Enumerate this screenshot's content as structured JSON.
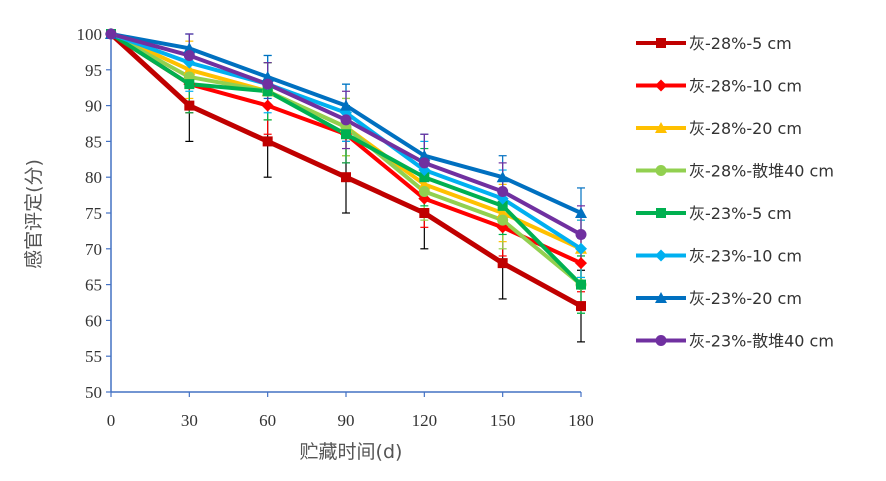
{
  "chart_data": {
    "type": "line",
    "xlabel": "贮藏时间(d)",
    "ylabel": "感官评定(分)",
    "x": [
      0,
      30,
      60,
      90,
      120,
      150,
      180
    ],
    "xlim": [
      0,
      180
    ],
    "ylim": [
      50,
      100
    ],
    "yticks": [
      50,
      55,
      60,
      65,
      70,
      75,
      80,
      85,
      90,
      95,
      100
    ],
    "grid": false,
    "error_bars": true,
    "legend_position": "right",
    "series": [
      {
        "name": "灰-28%-5 cm",
        "color": "#C00000",
        "marker": "square",
        "values": [
          100,
          90,
          85,
          80,
          75,
          68,
          62
        ],
        "errors": [
          0,
          5,
          5,
          5,
          5,
          5,
          5
        ]
      },
      {
        "name": "灰-28%-10 cm",
        "color": "#FF0000",
        "marker": "diamond",
        "values": [
          100,
          93,
          90,
          86,
          77,
          73,
          68
        ],
        "errors": [
          0,
          4,
          4,
          4,
          4,
          4,
          4
        ]
      },
      {
        "name": "灰-28%-20 cm",
        "color": "#FFC000",
        "marker": "triangle",
        "values": [
          100,
          95,
          92,
          87,
          79,
          75,
          70
        ],
        "errors": [
          0,
          4,
          4,
          4,
          4,
          4,
          4
        ]
      },
      {
        "name": "灰-28%-散堆40 cm",
        "color": "#92D050",
        "marker": "circle",
        "values": [
          100,
          94,
          92,
          87,
          78,
          74,
          65
        ],
        "errors": [
          0,
          4,
          4,
          4,
          4,
          4,
          4
        ]
      },
      {
        "name": "灰-23%-5 cm",
        "color": "#00B050",
        "marker": "square",
        "values": [
          100,
          93,
          92,
          86,
          80,
          76,
          65
        ],
        "errors": [
          0,
          4,
          4,
          4,
          4,
          4,
          4
        ]
      },
      {
        "name": "灰-23%-10 cm",
        "color": "#00B0F0",
        "marker": "diamond",
        "values": [
          100,
          96,
          93,
          89,
          81,
          77,
          70
        ],
        "errors": [
          0,
          4,
          4,
          4,
          4,
          4,
          4
        ]
      },
      {
        "name": "灰-23%-20 cm",
        "color": "#0070C0",
        "marker": "triangle",
        "values": [
          100,
          98,
          94,
          90,
          83,
          80,
          75
        ],
        "errors": [
          0,
          2,
          3,
          3,
          3,
          3,
          3.5
        ]
      },
      {
        "name": "灰-23%-散堆40 cm",
        "color": "#7030A0",
        "marker": "circle",
        "values": [
          100,
          97,
          93,
          88,
          82,
          78,
          72
        ],
        "errors": [
          0,
          3,
          3,
          4,
          4,
          4,
          4
        ]
      }
    ]
  }
}
